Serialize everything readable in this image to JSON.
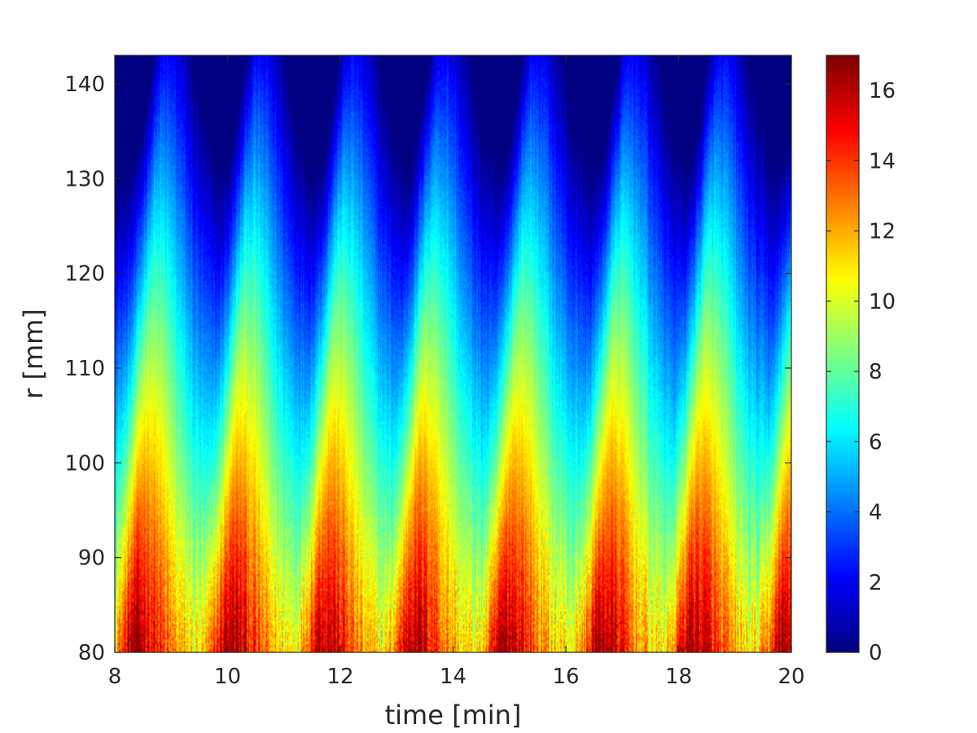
{
  "chart_data": {
    "type": "heatmap",
    "title": "",
    "xlabel": "time [min]",
    "ylabel": "r [mm]",
    "xlim": [
      8,
      20
    ],
    "ylim": [
      80,
      143
    ],
    "xticks": [
      "8",
      "10",
      "12",
      "14",
      "16",
      "18",
      "20"
    ],
    "yticks": [
      "80",
      "90",
      "100",
      "110",
      "120",
      "130",
      "140"
    ],
    "colormap": "jet",
    "clim": [
      0,
      17
    ],
    "colorbar_ticks": [
      "0",
      "2",
      "4",
      "6",
      "8",
      "10",
      "12",
      "14",
      "16"
    ],
    "colorbar_position": "right",
    "grid": false,
    "pulse_peak_times": [
      8.35,
      10.0,
      11.65,
      13.25,
      14.9,
      16.6,
      18.2,
      19.85
    ],
    "pulse_period_min": 1.65,
    "value_at_r80_peak": 16,
    "value_at_r80_trough": 10,
    "value_at_r140_peak": 5,
    "value_at_r140_trough": 0
  }
}
